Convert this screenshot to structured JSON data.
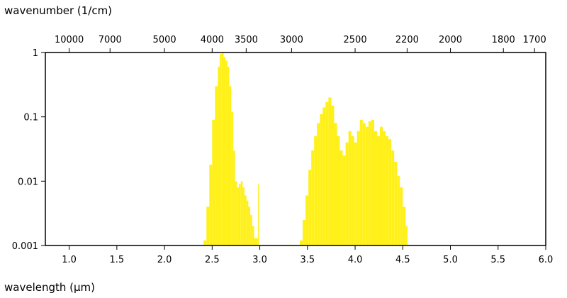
{
  "chart_data": {
    "type": "area",
    "title": "",
    "xlabel": "wavelength (μm)",
    "x2label": "wavenumber (1/cm)",
    "ylabel": "",
    "xlim": [
      0.75,
      6.0
    ],
    "ylim": [
      0.001,
      1
    ],
    "yscale": "log",
    "grid": false,
    "fill_color": "#fff01a",
    "x_ticks": [
      1.0,
      1.5,
      2.0,
      2.5,
      3.0,
      3.5,
      4.0,
      4.5,
      5.0,
      5.5,
      6.0
    ],
    "x_tick_labels": [
      "1.0",
      "1.5",
      "2.0",
      "2.5",
      "3.0",
      "3.5",
      "4.0",
      "4.5",
      "5.0",
      "5.5",
      "6.0"
    ],
    "y_ticks": [
      0.001,
      0.01,
      0.1,
      1
    ],
    "y_tick_labels": [
      "0.001",
      "0.01",
      "0.1",
      "1"
    ],
    "x2_ticks": [
      10000,
      7000,
      5000,
      4000,
      3500,
      3000,
      2500,
      2200,
      2000,
      1800,
      1700
    ],
    "x2_tick_labels": [
      "10000",
      "7000",
      "5000",
      "4000",
      "3500",
      "3000",
      "2500",
      "2200",
      "2000",
      "1800",
      "1700"
    ],
    "series": [
      {
        "x": [
          2.41,
          2.44,
          2.47,
          2.5,
          2.53,
          2.56,
          2.58,
          2.6,
          2.62,
          2.64,
          2.66,
          2.68,
          2.7,
          2.72,
          2.74,
          2.76,
          2.78,
          2.8,
          2.82,
          2.84,
          2.86,
          2.88,
          2.9,
          2.92,
          2.94,
          2.98,
          2.99,
          3.42,
          3.45,
          3.48,
          3.51,
          3.54,
          3.57,
          3.6,
          3.63,
          3.66,
          3.69,
          3.72,
          3.75,
          3.78,
          3.81,
          3.84,
          3.87,
          3.9,
          3.93,
          3.96,
          3.99,
          4.02,
          4.05,
          4.08,
          4.11,
          4.14,
          4.17,
          4.2,
          4.23,
          4.26,
          4.29,
          4.32,
          4.35,
          4.38,
          4.41,
          4.44,
          4.47,
          4.5,
          4.53,
          4.55
        ],
        "y": [
          0.0012,
          0.004,
          0.018,
          0.09,
          0.3,
          0.6,
          0.95,
          1.0,
          0.85,
          0.75,
          0.6,
          0.3,
          0.12,
          0.03,
          0.01,
          0.008,
          0.009,
          0.01,
          0.008,
          0.006,
          0.005,
          0.004,
          0.003,
          0.002,
          0.0013,
          0.009,
          0.001,
          0.0012,
          0.0025,
          0.006,
          0.015,
          0.03,
          0.05,
          0.08,
          0.11,
          0.14,
          0.17,
          0.2,
          0.15,
          0.08,
          0.05,
          0.03,
          0.025,
          0.04,
          0.06,
          0.05,
          0.04,
          0.06,
          0.09,
          0.08,
          0.07,
          0.085,
          0.09,
          0.06,
          0.05,
          0.07,
          0.06,
          0.05,
          0.045,
          0.03,
          0.02,
          0.012,
          0.008,
          0.004,
          0.002,
          0.001
        ]
      }
    ]
  }
}
